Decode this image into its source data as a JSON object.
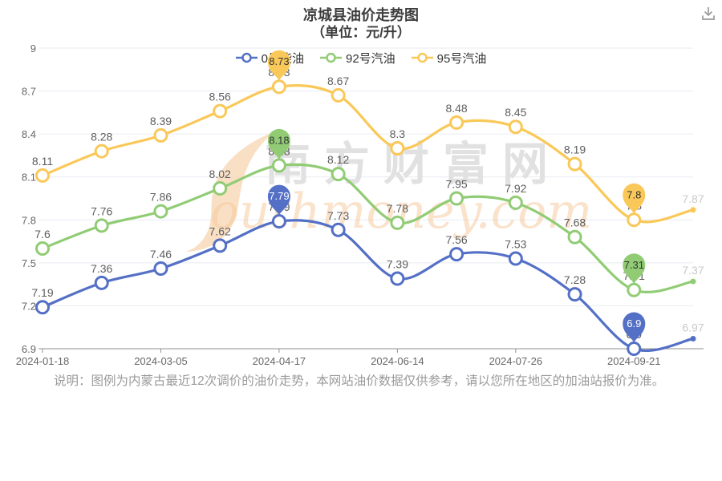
{
  "header": {
    "title": "凉城县油价走势图",
    "subtitle": "（单位：元/升）"
  },
  "icons": {
    "download": "download"
  },
  "watermark": {
    "text_cn": "南方财富网",
    "text_en": "outhmoney.com"
  },
  "note": {
    "text": "说明：图例为内蒙古最近12次调价的油价走势，本网站油价数据仅供参考，请以您所在地区的加油站报价为准。"
  },
  "chart_data": {
    "type": "line",
    "title": "凉城县油价走势图",
    "unit": "元/升",
    "smooth": true,
    "grid": true,
    "legend_position": "top",
    "ylim": [
      6.9,
      9
    ],
    "y_ticks": [
      6.9,
      7.2,
      7.5,
      7.8,
      8.1,
      8.4,
      8.7,
      9
    ],
    "x_tick_labels": [
      "2024-01-18",
      "2024-03-05",
      "2024-04-17",
      "2024-06-14",
      "2024-07-26",
      "2024-09-21"
    ],
    "x_tick_indices": [
      0,
      2,
      4,
      6,
      8,
      10
    ],
    "pin_indices": [
      4,
      10
    ],
    "colors": {
      "grid_line": "#e8ebf2",
      "axis_line": "#909090",
      "tick_label": "#666666",
      "point_label": "#5e5e5e",
      "last_point_label": "#c9c9c9"
    },
    "series": [
      {
        "name": "0号柴油",
        "color": "#5470c6",
        "pin_text_color": "#ffffff",
        "values": [
          7.19,
          7.36,
          7.46,
          7.62,
          7.79,
          7.73,
          7.39,
          7.56,
          7.53,
          7.28,
          6.9,
          6.97
        ]
      },
      {
        "name": "92号汽油",
        "color": "#91cc75",
        "pin_text_color": "#333333",
        "values": [
          7.6,
          7.76,
          7.86,
          8.02,
          8.18,
          8.12,
          7.78,
          7.95,
          7.92,
          7.68,
          7.31,
          7.37
        ]
      },
      {
        "name": "95号汽油",
        "color": "#fac858",
        "pin_text_color": "#333333",
        "values": [
          8.11,
          8.28,
          8.39,
          8.56,
          8.73,
          8.67,
          8.3,
          8.48,
          8.45,
          8.19,
          7.8,
          7.87
        ]
      }
    ]
  }
}
